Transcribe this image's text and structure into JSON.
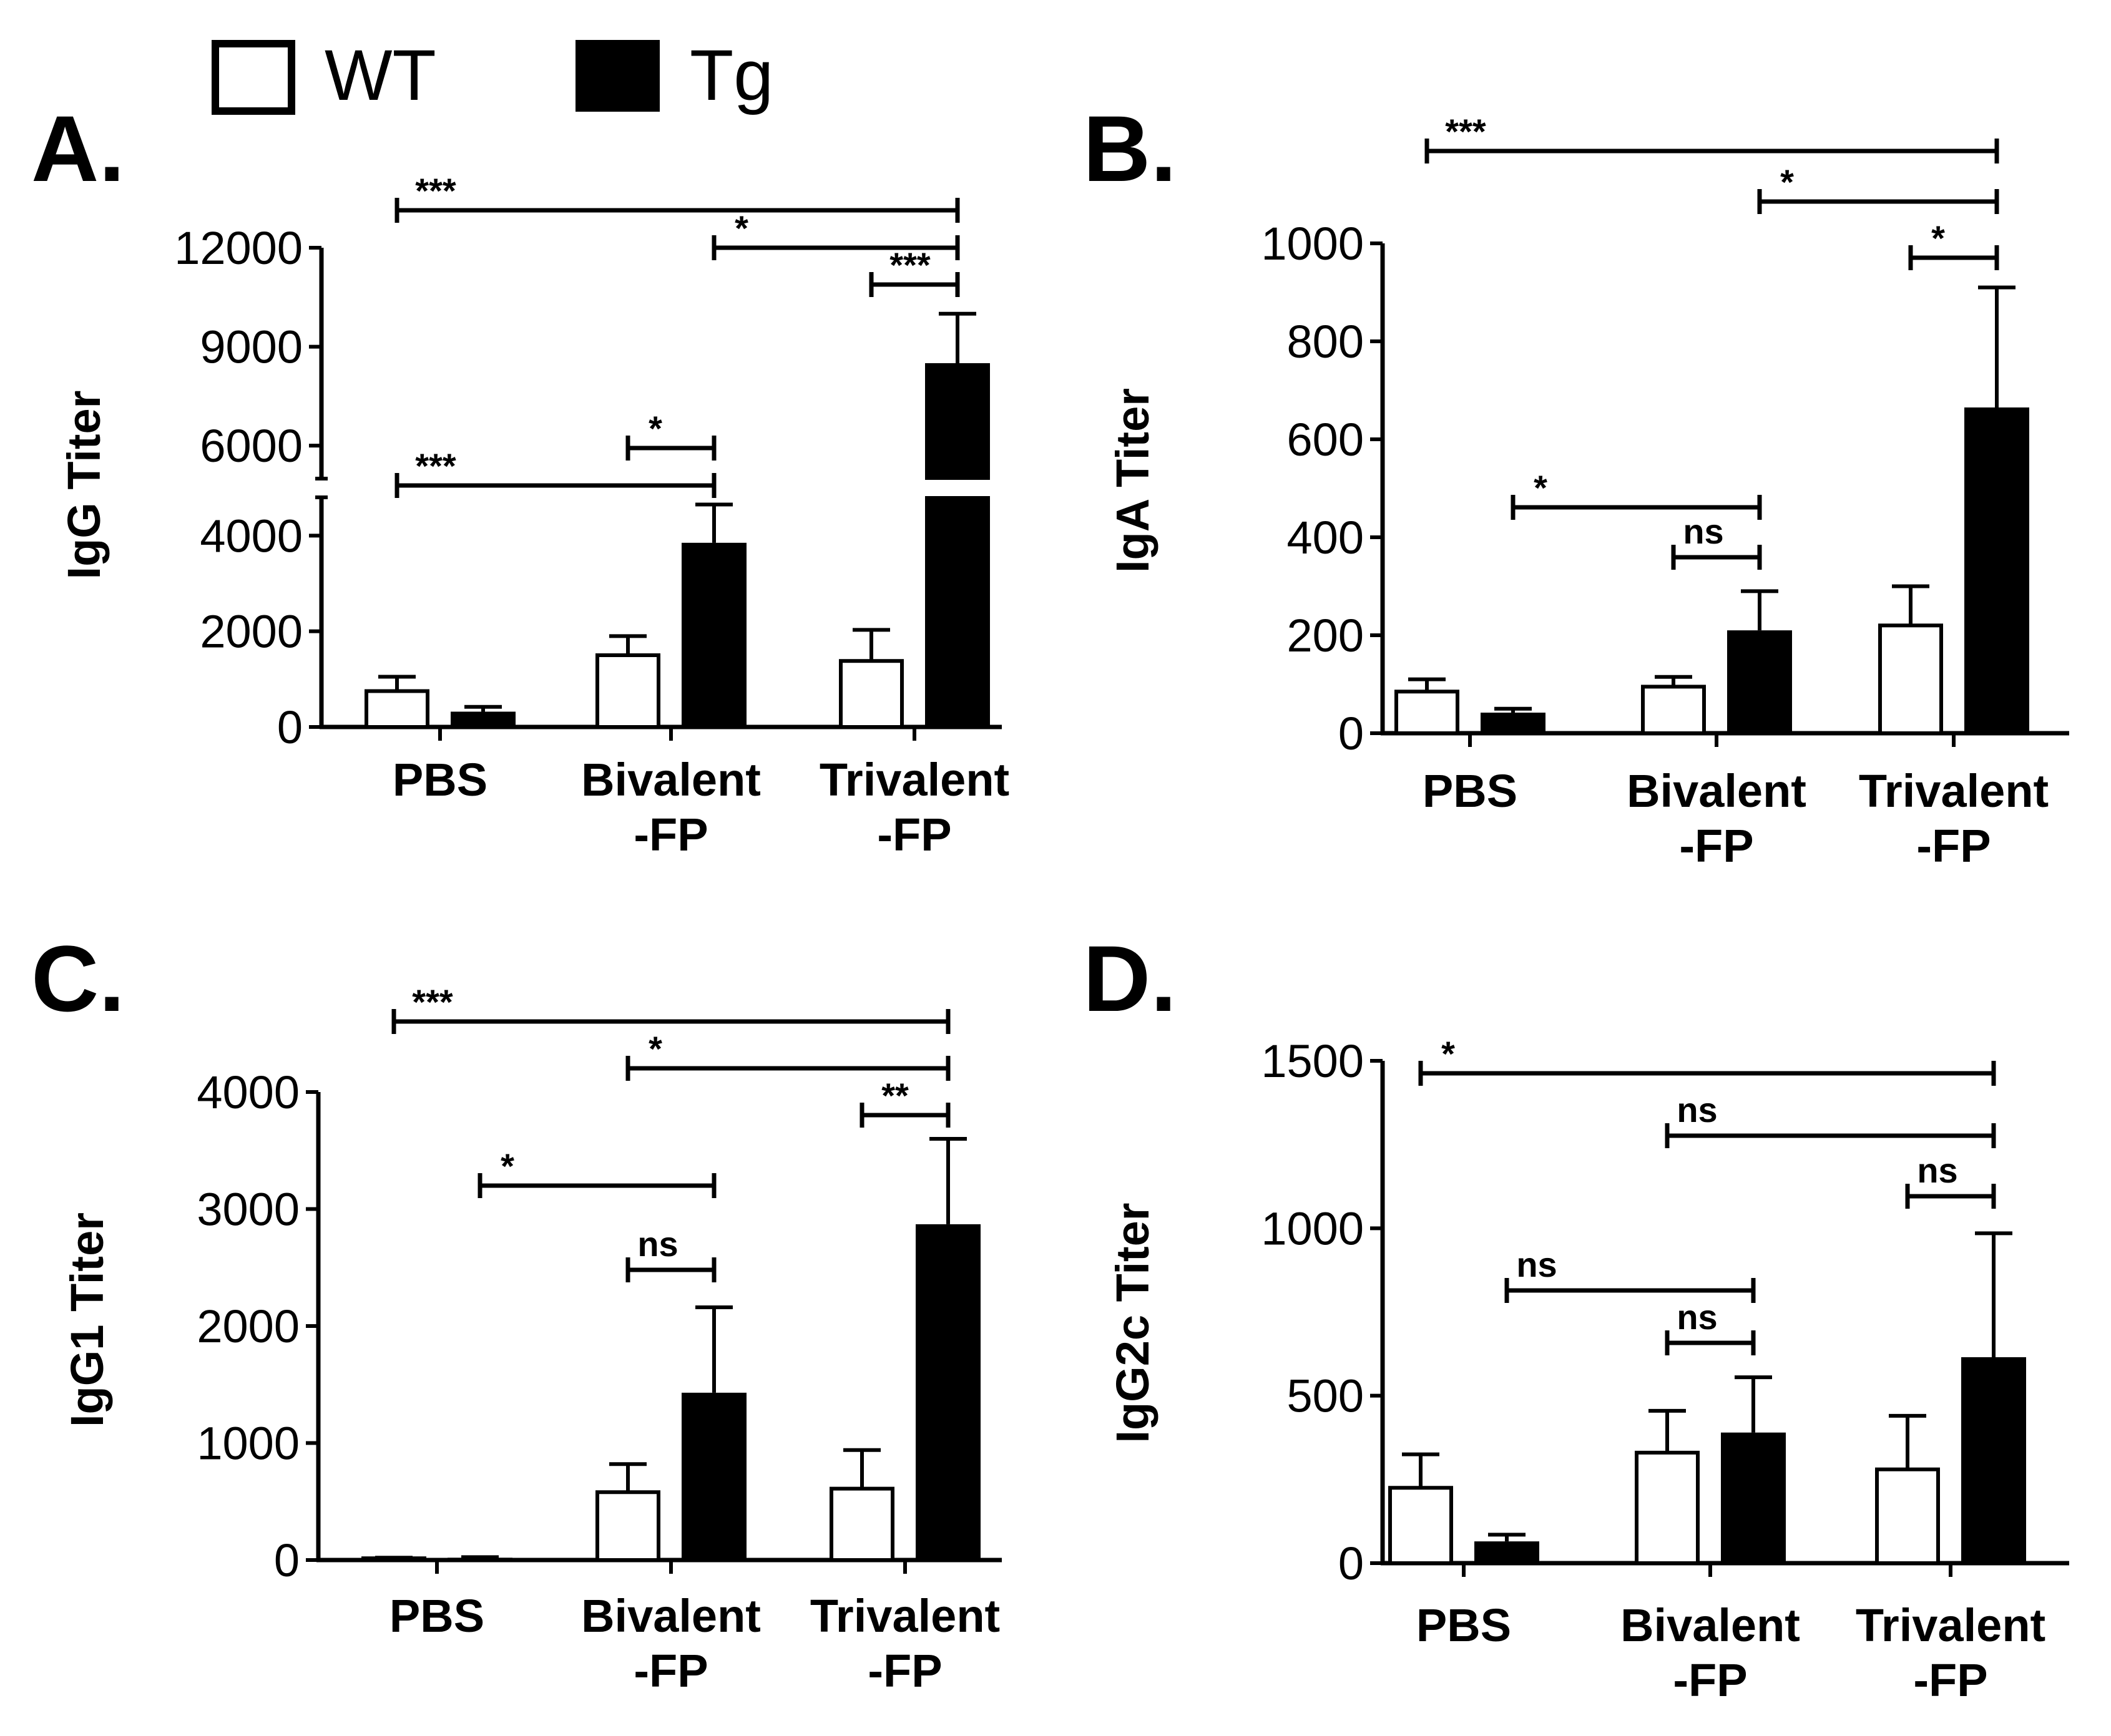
{
  "legend": [
    {
      "label": "WT",
      "fill": "#ffffff"
    },
    {
      "label": "Tg",
      "fill": "#000000"
    }
  ],
  "colors": {
    "wt": "#ffffff",
    "tg": "#000000",
    "ink": "#000000"
  },
  "chart_data": [
    {
      "panel": "A.",
      "type": "bar",
      "ylabel": "IgG Titer",
      "categories": [
        [
          "PBS"
        ],
        [
          "Bivalent",
          "-FP"
        ],
        [
          "Trivalent",
          "-FP"
        ]
      ],
      "yticks": [
        "0",
        "2000",
        "4000",
        "6000",
        "9000",
        "12000"
      ],
      "broken_axis": {
        "lower_range": [
          0,
          4800
        ],
        "upper_range": [
          5000,
          12000
        ]
      },
      "series": [
        {
          "name": "WT",
          "values": [
            750,
            1500,
            1380
          ],
          "errors": [
            300,
            400,
            650
          ]
        },
        {
          "name": "Tg",
          "values": [
            320,
            3850,
            8500
          ],
          "errors": [
            100,
            800,
            1500
          ]
        }
      ],
      "comparisons": [
        {
          "label": "***",
          "from": [
            0,
            0
          ],
          "to": [
            2,
            1
          ]
        },
        {
          "label": "*",
          "from": [
            1,
            1
          ],
          "to": [
            2,
            1
          ]
        },
        {
          "label": "***",
          "from": [
            2,
            0
          ],
          "to": [
            2,
            1
          ]
        },
        {
          "label": "*",
          "from": [
            1,
            0
          ],
          "to": [
            1,
            1
          ]
        },
        {
          "label": "***",
          "from": [
            0,
            0
          ],
          "to": [
            1,
            1
          ]
        }
      ]
    },
    {
      "panel": "B.",
      "type": "bar",
      "ylabel": "IgA Titer",
      "categories": [
        [
          "PBS"
        ],
        [
          "Bivalent",
          "-FP"
        ],
        [
          "Trivalent",
          "-FP"
        ]
      ],
      "yticks": [
        "0",
        "200",
        "400",
        "600",
        "800",
        "1000"
      ],
      "ylim": [
        0,
        1000
      ],
      "series": [
        {
          "name": "WT",
          "values": [
            85,
            95,
            220
          ],
          "errors": [
            25,
            20,
            80
          ]
        },
        {
          "name": "Tg",
          "values": [
            42,
            210,
            665
          ],
          "errors": [
            8,
            80,
            245
          ]
        }
      ],
      "comparisons": [
        {
          "label": "***",
          "from": [
            0,
            0
          ],
          "to": [
            2,
            1
          ]
        },
        {
          "label": "*",
          "from": [
            1,
            1
          ],
          "to": [
            2,
            1
          ]
        },
        {
          "label": "*",
          "from": [
            2,
            0
          ],
          "to": [
            2,
            1
          ]
        },
        {
          "label": "*",
          "from": [
            0,
            1
          ],
          "to": [
            1,
            1
          ]
        },
        {
          "label": "ns",
          "from": [
            1,
            0
          ],
          "to": [
            1,
            1
          ]
        }
      ]
    },
    {
      "panel": "C.",
      "type": "bar",
      "ylabel": "IgG1 Titer",
      "categories": [
        [
          "PBS"
        ],
        [
          "Bivalent",
          "-FP"
        ],
        [
          "Trivalent",
          "-FP"
        ]
      ],
      "yticks": [
        "0",
        "1000",
        "2000",
        "3000",
        "4000"
      ],
      "ylim": [
        0,
        4000
      ],
      "series": [
        {
          "name": "WT",
          "values": [
            15,
            580,
            610
          ],
          "errors": [
            5,
            240,
            330
          ]
        },
        {
          "name": "Tg",
          "values": [
            20,
            1430,
            2870
          ],
          "errors": [
            5,
            730,
            730
          ]
        }
      ],
      "comparisons": [
        {
          "label": "***",
          "from": [
            0,
            0
          ],
          "to": [
            2,
            1
          ]
        },
        {
          "label": "*",
          "from": [
            1,
            0
          ],
          "to": [
            2,
            1
          ]
        },
        {
          "label": "**",
          "from": [
            2,
            0
          ],
          "to": [
            2,
            1
          ]
        },
        {
          "label": "*",
          "from": [
            0,
            1
          ],
          "to": [
            1,
            1
          ]
        },
        {
          "label": "ns",
          "from": [
            1,
            0
          ],
          "to": [
            1,
            1
          ]
        }
      ]
    },
    {
      "panel": "D.",
      "type": "bar",
      "ylabel": "IgG2c Titer",
      "categories": [
        [
          "PBS"
        ],
        [
          "Bivalent",
          "-FP"
        ],
        [
          "Trivalent",
          "-FP"
        ]
      ],
      "yticks": [
        "0",
        "500",
        "1000",
        "1500"
      ],
      "ylim": [
        0,
        1500
      ],
      "series": [
        {
          "name": "WT",
          "values": [
            225,
            330,
            280
          ],
          "errors": [
            100,
            125,
            160
          ]
        },
        {
          "name": "Tg",
          "values": [
            65,
            390,
            615
          ],
          "errors": [
            20,
            165,
            370
          ]
        }
      ],
      "comparisons": [
        {
          "label": "*",
          "from": [
            0,
            0
          ],
          "to": [
            2,
            1
          ]
        },
        {
          "label": "ns",
          "from": [
            1,
            0
          ],
          "to": [
            2,
            1
          ]
        },
        {
          "label": "ns",
          "from": [
            2,
            0
          ],
          "to": [
            2,
            1
          ]
        },
        {
          "label": "ns",
          "from": [
            0,
            1
          ],
          "to": [
            1,
            1
          ]
        },
        {
          "label": "ns",
          "from": [
            1,
            0
          ],
          "to": [
            1,
            1
          ]
        }
      ]
    }
  ]
}
